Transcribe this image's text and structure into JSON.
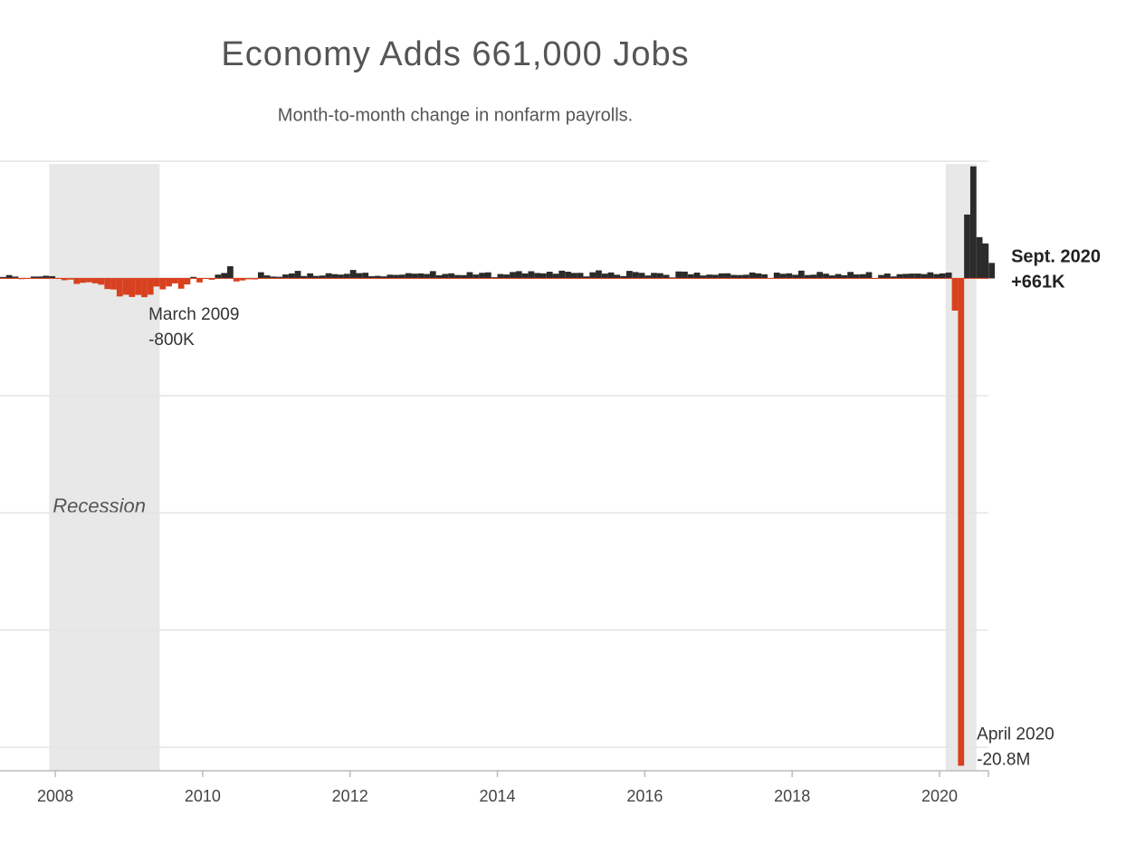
{
  "chart_data": {
    "type": "bar",
    "title": "Economy Adds 661,000 Jobs",
    "subtitle": "Month-to-month change in nonfarm payrolls.",
    "x": [
      2007.25,
      2007.333,
      2007.417,
      2007.5,
      2007.583,
      2007.667,
      2007.75,
      2007.833,
      2007.917,
      2008,
      2008.083,
      2008.167,
      2008.25,
      2008.333,
      2008.417,
      2008.5,
      2008.583,
      2008.667,
      2008.75,
      2008.833,
      2008.917,
      2009,
      2009.083,
      2009.167,
      2009.25,
      2009.333,
      2009.417,
      2009.5,
      2009.583,
      2009.667,
      2009.75,
      2009.833,
      2009.917,
      2010,
      2010.083,
      2010.167,
      2010.25,
      2010.333,
      2010.417,
      2010.5,
      2010.583,
      2010.667,
      2010.75,
      2010.833,
      2010.917,
      2011,
      2011.083,
      2011.167,
      2011.25,
      2011.333,
      2011.417,
      2011.5,
      2011.583,
      2011.667,
      2011.75,
      2011.833,
      2011.917,
      2012,
      2012.083,
      2012.167,
      2012.25,
      2012.333,
      2012.417,
      2012.5,
      2012.583,
      2012.667,
      2012.75,
      2012.833,
      2012.917,
      2013,
      2013.083,
      2013.167,
      2013.25,
      2013.333,
      2013.417,
      2013.5,
      2013.583,
      2013.667,
      2013.75,
      2013.833,
      2013.917,
      2014,
      2014.083,
      2014.167,
      2014.25,
      2014.333,
      2014.417,
      2014.5,
      2014.583,
      2014.667,
      2014.75,
      2014.833,
      2014.917,
      2015,
      2015.083,
      2015.167,
      2015.25,
      2015.333,
      2015.417,
      2015.5,
      2015.583,
      2015.667,
      2015.75,
      2015.833,
      2015.917,
      2016,
      2016.083,
      2016.167,
      2016.25,
      2016.333,
      2016.417,
      2016.5,
      2016.583,
      2016.667,
      2016.75,
      2016.833,
      2016.917,
      2017,
      2017.083,
      2017.167,
      2017.25,
      2017.333,
      2017.417,
      2017.5,
      2017.583,
      2017.667,
      2017.75,
      2017.833,
      2017.917,
      2018,
      2018.083,
      2018.167,
      2018.25,
      2018.333,
      2018.417,
      2018.5,
      2018.583,
      2018.667,
      2018.75,
      2018.833,
      2018.917,
      2019,
      2019.083,
      2019.167,
      2019.25,
      2019.333,
      2019.417,
      2019.5,
      2019.583,
      2019.667,
      2019.75,
      2019.833,
      2019.917,
      2020,
      2020.083,
      2020.167,
      2020.25,
      2020.333,
      2020.417,
      2020.5,
      2020.583,
      2020.667
    ],
    "values": [
      62,
      143,
      78,
      -32,
      -20,
      81,
      82,
      115,
      97,
      -1,
      -77,
      -50,
      -236,
      -186,
      -164,
      -209,
      -266,
      -452,
      -473,
      -769,
      -695,
      -791,
      -703,
      -800,
      -695,
      -345,
      -468,
      -342,
      -212,
      -439,
      -256,
      64,
      -170,
      -22,
      -57,
      163,
      231,
      520,
      -130,
      -86,
      -37,
      -43,
      264,
      130,
      79,
      70,
      168,
      212,
      322,
      102,
      217,
      106,
      122,
      221,
      183,
      164,
      196,
      360,
      226,
      243,
      96,
      110,
      88,
      160,
      150,
      161,
      225,
      203,
      214,
      190,
      311,
      135,
      192,
      218,
      146,
      140,
      268,
      165,
      240,
      259,
      53,
      188,
      168,
      272,
      310,
      213,
      306,
      232,
      218,
      286,
      200,
      331,
      286,
      234,
      238,
      86,
      262,
      344,
      206,
      254,
      157,
      100,
      321,
      272,
      239,
      126,
      237,
      225,
      153,
      43,
      297,
      291,
      176,
      249,
      124,
      164,
      155,
      216,
      219,
      149,
      144,
      159,
      254,
      215,
      176,
      18,
      249,
      198,
      219,
      155,
      332,
      144,
      159,
      277,
      202,
      129,
      189,
      137,
      277,
      170,
      182,
      269,
      1,
      147,
      210,
      85,
      182,
      194,
      207,
      208,
      185,
      261,
      184,
      214,
      251,
      -1373,
      -20787,
      2725,
      4781,
      1761,
      1493,
      661
    ],
    "date_labels": [
      null,
      null,
      null,
      null,
      null,
      null,
      null,
      null,
      null,
      null,
      null,
      null,
      null,
      null,
      null,
      null,
      null,
      null,
      null,
      null,
      null,
      null,
      null,
      "March 2009",
      null,
      null,
      null,
      null,
      null,
      null,
      null,
      null,
      null,
      null,
      null,
      null,
      null,
      null,
      null,
      null,
      null,
      null,
      null,
      null,
      null,
      null,
      null,
      null,
      null,
      null,
      null,
      null,
      null,
      null,
      null,
      null,
      null,
      null,
      null,
      null,
      null,
      null,
      null,
      null,
      null,
      null,
      null,
      null,
      null,
      null,
      null,
      null,
      null,
      null,
      null,
      null,
      null,
      null,
      null,
      null,
      null,
      null,
      null,
      null,
      null,
      null,
      null,
      null,
      null,
      null,
      null,
      null,
      null,
      null,
      null,
      null,
      null,
      null,
      null,
      null,
      null,
      null,
      null,
      null,
      null,
      null,
      null,
      null,
      null,
      null,
      null,
      null,
      null,
      null,
      null,
      null,
      null,
      null,
      null,
      null,
      null,
      null,
      null,
      null,
      null,
      null,
      null,
      null,
      null,
      null,
      null,
      null,
      null,
      null,
      null,
      null,
      null,
      null,
      null,
      null,
      null,
      null,
      null,
      null,
      null,
      null,
      null,
      null,
      null,
      null,
      null,
      null,
      null,
      null,
      null,
      null,
      "April 2020",
      null,
      null,
      null,
      null,
      "Sept. 2020"
    ],
    "value_labels": [
      null,
      null,
      null,
      null,
      null,
      null,
      null,
      null,
      null,
      null,
      null,
      null,
      null,
      null,
      null,
      null,
      null,
      null,
      null,
      null,
      null,
      null,
      null,
      "-800K",
      null,
      null,
      null,
      null,
      null,
      null,
      null,
      null,
      null,
      null,
      null,
      null,
      null,
      null,
      null,
      null,
      null,
      null,
      null,
      null,
      null,
      null,
      null,
      null,
      null,
      null,
      null,
      null,
      null,
      null,
      null,
      null,
      null,
      null,
      null,
      null,
      null,
      null,
      null,
      null,
      null,
      null,
      null,
      null,
      null,
      null,
      null,
      null,
      null,
      null,
      null,
      null,
      null,
      null,
      null,
      null,
      null,
      null,
      null,
      null,
      null,
      null,
      null,
      null,
      null,
      null,
      null,
      null,
      null,
      null,
      null,
      null,
      null,
      null,
      null,
      null,
      null,
      null,
      null,
      null,
      null,
      null,
      null,
      null,
      null,
      null,
      null,
      null,
      null,
      null,
      null,
      null,
      null,
      null,
      null,
      null,
      null,
      null,
      null,
      null,
      null,
      null,
      null,
      null,
      null,
      null,
      null,
      null,
      null,
      null,
      null,
      null,
      null,
      null,
      null,
      null,
      null,
      null,
      null,
      null,
      null,
      null,
      null,
      null,
      null,
      null,
      null,
      null,
      null,
      null,
      null,
      null,
      "-20.8M",
      null,
      null,
      null,
      null,
      "+661K"
    ],
    "colors": {
      "positive": "#2b2b2b",
      "negative": "#d8411f"
    },
    "recessions": [
      [
        2007.917,
        2009.417
      ],
      [
        2020.083,
        2020.5
      ]
    ],
    "recession_label": "Recession",
    "xlim": [
      2007.25,
      2020.7
    ],
    "xticks": [
      2008,
      2010,
      2012,
      2014,
      2016,
      2018,
      2020
    ],
    "ylim": [
      -21000,
      5000
    ],
    "yticks": [
      -20000,
      -15000,
      -10000,
      -5000,
      0,
      5000
    ],
    "grid": true
  }
}
